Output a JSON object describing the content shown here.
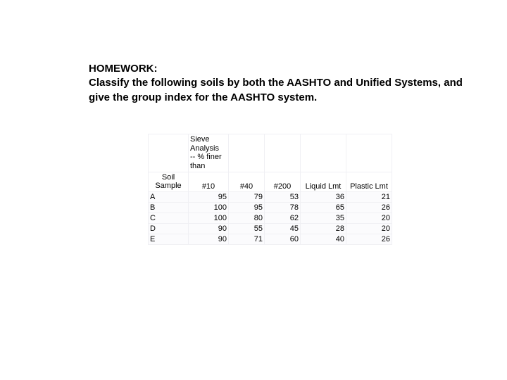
{
  "heading": {
    "line1": "HOMEWORK:",
    "line2": "Classify the following soils by both the AASHTO and Unified Systems, and give the group index for the AASHTO system."
  },
  "table": {
    "sieve_label_l1": "Sieve",
    "sieve_label_l2": "Analysis",
    "sieve_label_l3": "-- % finer",
    "sieve_label_l4": "than",
    "soil_sample_l1": "Soil",
    "soil_sample_l2": "Sample",
    "col_10": "#10",
    "col_40": "#40",
    "col_200": "#200",
    "col_ll": "Liquid Lmt",
    "col_pl": "Plastic Lmt",
    "rows": [
      {
        "sample": "A",
        "s10": "95",
        "s40": "79",
        "s200": "53",
        "ll": "36",
        "pl": "21"
      },
      {
        "sample": "B",
        "s10": "100",
        "s40": "95",
        "s200": "78",
        "ll": "65",
        "pl": "26"
      },
      {
        "sample": "C",
        "s10": "100",
        "s40": "80",
        "s200": "62",
        "ll": "35",
        "pl": "20"
      },
      {
        "sample": "D",
        "s10": "90",
        "s40": "55",
        "s200": "45",
        "ll": "28",
        "pl": "20"
      },
      {
        "sample": "E",
        "s10": "90",
        "s40": "71",
        "s200": "60",
        "ll": "40",
        "pl": "26"
      }
    ]
  },
  "colors": {
    "background": "#ffffff",
    "text": "#000000",
    "row_bg": "#fbfbfd",
    "border": "#f0f0f4"
  },
  "fonts": {
    "heading_size_pt": 15,
    "heading_weight": "bold",
    "table_size_pt": 11,
    "family": "Arial"
  }
}
